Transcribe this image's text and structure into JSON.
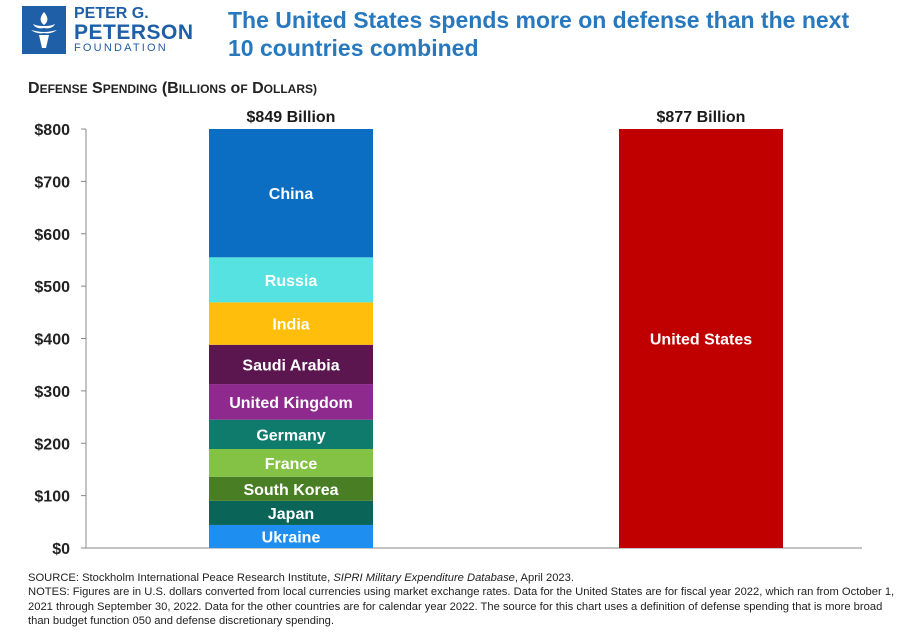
{
  "header": {
    "logo_line1": "PETER G.",
    "logo_line2": "PETERSON",
    "logo_line3": "FOUNDATION",
    "title_line1": "The United States spends more on defense than the next",
    "title_line2": "10 countries combined"
  },
  "chart_data": {
    "type": "bar",
    "title": "Defense Spending (Billions of Dollars)",
    "ylim": [
      0,
      800
    ],
    "yticks": [
      "$0",
      "$100",
      "$200",
      "$300",
      "$400",
      "$500",
      "$600",
      "$700",
      "$800"
    ],
    "grid": false,
    "bars": [
      {
        "total_label": "$849 Billion",
        "stacked": true,
        "segments": [
          {
            "name": "Ukraine",
            "value": 44,
            "color": "#1e8ff0"
          },
          {
            "name": "Japan",
            "value": 46,
            "color": "#0a6458"
          },
          {
            "name": "South Korea",
            "value": 46,
            "color": "#4a7e25"
          },
          {
            "name": "France",
            "value": 53,
            "color": "#84c246"
          },
          {
            "name": "Germany",
            "value": 56,
            "color": "#0e7b6c"
          },
          {
            "name": "United Kingdom",
            "value": 68,
            "color": "#8e2a8e"
          },
          {
            "name": "Saudi Arabia",
            "value": 75,
            "color": "#5b1650"
          },
          {
            "name": "India",
            "value": 81,
            "color": "#ffbe0b"
          },
          {
            "name": "Russia",
            "value": 86,
            "color": "#55e2e0"
          },
          {
            "name": "China",
            "value": 292,
            "color": "#0c6ec2"
          }
        ]
      },
      {
        "total_label": "$877 Billion",
        "stacked": false,
        "segments": [
          {
            "name": "United States",
            "value": 877,
            "color": "#c00000"
          }
        ]
      }
    ]
  },
  "footer": {
    "source_prefix": "SOURCE: Stockholm International Peace Research Institute, ",
    "source_italic": "SIPRI Military Expenditure Database",
    "source_suffix": ", April 2023.",
    "notes": "NOTES: Figures are in U.S. dollars converted from local currencies using market exchange rates. Data for the United States are for fiscal year 2022, which ran from October 1, 2021 through September 30, 2022. Data for the other countries are for calendar year 2022. The source for this chart uses a definition of defense spending that is more broad than budget function 050 and defense discretionary spending."
  }
}
